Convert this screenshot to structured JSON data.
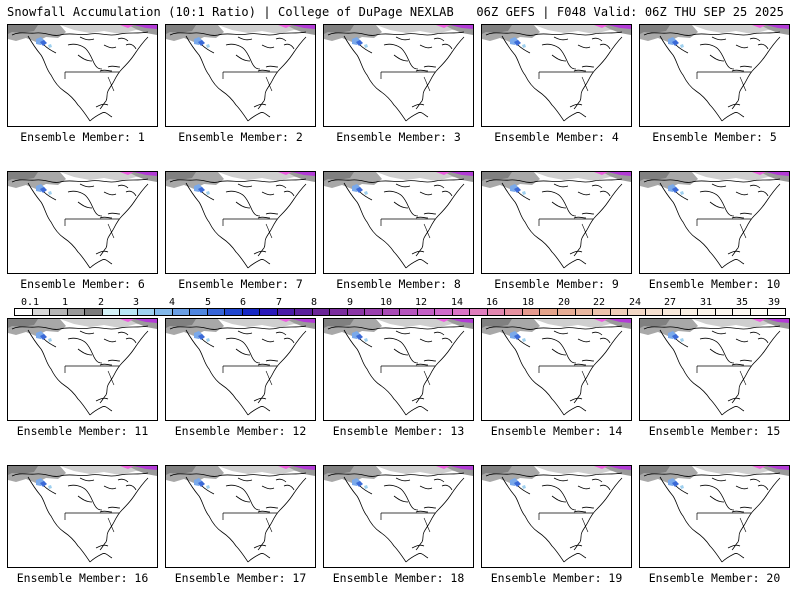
{
  "header": {
    "left_title": "Snowfall Accumulation (10:1 Ratio) | College of DuPage NEXLAB",
    "right_title": "06Z GEFS | F048 Valid: 06Z THU SEP 25 2025"
  },
  "members": [
    "Ensemble Member: 1",
    "Ensemble Member: 2",
    "Ensemble Member: 3",
    "Ensemble Member: 4",
    "Ensemble Member: 5",
    "Ensemble Member: 6",
    "Ensemble Member: 7",
    "Ensemble Member: 8",
    "Ensemble Member: 9",
    "Ensemble Member: 10",
    "Ensemble Member: 11",
    "Ensemble Member: 12",
    "Ensemble Member: 13",
    "Ensemble Member: 14",
    "Ensemble Member: 15",
    "Ensemble Member: 16",
    "Ensemble Member: 17",
    "Ensemble Member: 18",
    "Ensemble Member: 19",
    "Ensemble Member: 20"
  ],
  "legend": {
    "labels": [
      "0.1",
      "1",
      "2",
      "3",
      "4",
      "5",
      "6",
      "7",
      "8",
      "9",
      "10",
      "12",
      "14",
      "16",
      "18",
      "20",
      "22",
      "24",
      "27",
      "31",
      "35",
      "39"
    ],
    "colors": [
      "#ffffff",
      "#d8d8d8",
      "#b4b4b4",
      "#9a9a9a",
      "#7b7b7b",
      "#d4f2f7",
      "#b8e4f4",
      "#9fd0ef",
      "#83b8ea",
      "#6a9fe5",
      "#4f86e0",
      "#3765d8",
      "#2046cf",
      "#1628c4",
      "#2a18ba",
      "#4a1aa8",
      "#5a1f9c",
      "#6b2598",
      "#7b2d9e",
      "#8b36a6",
      "#9a40ae",
      "#a84ab6",
      "#b655be",
      "#c45fc6",
      "#d06acc",
      "#da74c8",
      "#e07dbe",
      "#e287b0",
      "#e691a0",
      "#e69a8f",
      "#e4a38a",
      "#e6ac94",
      "#e9b7a0",
      "#ecc2ad",
      "#efcdb9",
      "#f2d7c5",
      "#f5e0d0",
      "#f7e8da",
      "#f9efe3",
      "#fbf4ea",
      "#fcf7ef",
      "#fdf9f2",
      "#fefbf5",
      "#fffdf8"
    ]
  }
}
